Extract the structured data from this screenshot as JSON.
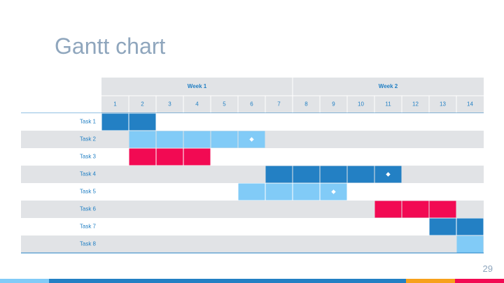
{
  "slide": {
    "title": "Gantt chart",
    "page_number": "29"
  },
  "colors": {
    "dark_blue": "#2380c4",
    "light_blue": "#81cbf7",
    "red": "#f20a53",
    "orange": "#f7a11b",
    "grey_row": "#e1e3e6",
    "white_row": "#ffffff",
    "header_text": "#2380c4",
    "title_text": "#8fa6bd"
  },
  "gantt": {
    "weeks": [
      {
        "label": "Week 1",
        "start_day": 1,
        "end_day": 7
      },
      {
        "label": "Week 2",
        "start_day": 8,
        "end_day": 14
      }
    ],
    "days": [
      "1",
      "2",
      "3",
      "4",
      "5",
      "6",
      "7",
      "8",
      "9",
      "10",
      "11",
      "12",
      "13",
      "14"
    ],
    "tasks": [
      {
        "label": "Task 1",
        "start": 1,
        "end": 2,
        "color": "dark_blue",
        "milestone_day": null
      },
      {
        "label": "Task 2",
        "start": 2,
        "end": 6,
        "color": "light_blue",
        "milestone_day": 6
      },
      {
        "label": "Task 3",
        "start": 2,
        "end": 4,
        "color": "red",
        "milestone_day": null
      },
      {
        "label": "Task 4",
        "start": 7,
        "end": 11,
        "color": "dark_blue",
        "milestone_day": 11
      },
      {
        "label": "Task 5",
        "start": 6,
        "end": 9,
        "color": "light_blue",
        "milestone_day": 9
      },
      {
        "label": "Task 6",
        "start": 11,
        "end": 13,
        "color": "red",
        "milestone_day": null
      },
      {
        "label": "Task 7",
        "start": 13,
        "end": 14,
        "color": "dark_blue",
        "milestone_day": null
      },
      {
        "label": "Task 8",
        "start": 14,
        "end": 14,
        "color": "light_blue",
        "milestone_day": null
      }
    ]
  },
  "footer": {
    "segments": [
      {
        "color": "light_blue",
        "share": 0.097
      },
      {
        "color": "dark_blue",
        "share": 0.708
      },
      {
        "color": "orange",
        "share": 0.097
      },
      {
        "color": "red",
        "share": 0.098
      }
    ]
  }
}
